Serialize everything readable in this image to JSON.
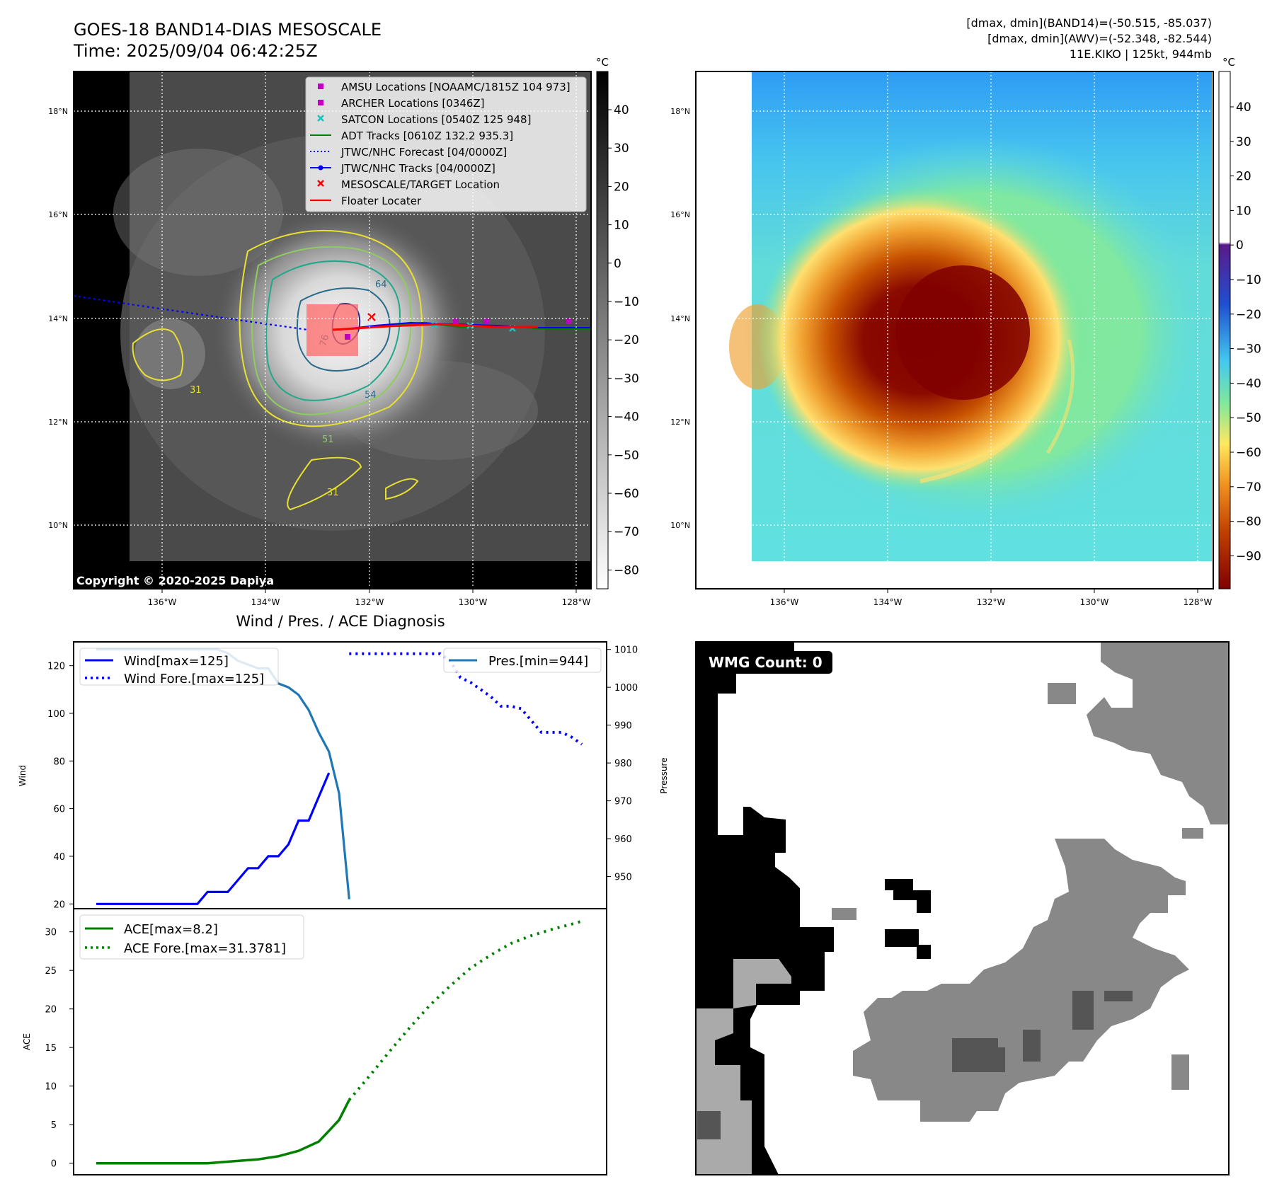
{
  "header": {
    "title_line1": "GOES-18 BAND14-DIAS MESOSCALE",
    "title_line2": "Time: 2025/09/04 06:42:25Z",
    "stats_line1": "[dmax, dmin](BAND14)=(-50.515, -85.037)",
    "stats_line2": "[dmax, dmin](AWV)=(-52.348, -82.544)",
    "stats_line3": "11E.KIKO | 125kt, 944mb"
  },
  "ir_map": {
    "colorbar_unit": "°C",
    "colorbar_ticks": [
      "40",
      "30",
      "20",
      "10",
      "0",
      "−10",
      "−20",
      "−30",
      "−40",
      "−50",
      "−60",
      "−70",
      "−80"
    ],
    "lat_labels": [
      "18°N",
      "16°N",
      "14°N",
      "12°N",
      "10°N"
    ],
    "lon_labels": [
      "136°W",
      "134°W",
      "132°W",
      "130°W",
      "128°W"
    ],
    "copyright": "Copyright © 2020-2025 Dapiya",
    "contour_labels": [
      "64",
      "76",
      "54",
      "31",
      "31",
      "51"
    ],
    "legend": [
      {
        "label": "AMSU Locations [NOAAMC/1815Z 104 973]",
        "color": "#c000c0",
        "marker": "square"
      },
      {
        "label": "ARCHER Locations [0346Z]",
        "color": "#c000c0",
        "marker": "square"
      },
      {
        "label": "SATCON Locations [0540Z 125 948]",
        "color": "#20c0c0",
        "marker": "x"
      },
      {
        "label": "ADT Tracks [0610Z 132.2 935.3]",
        "color": "#008000",
        "marker": "line"
      },
      {
        "label": "JTWC/NHC Forecast [04/0000Z]",
        "color": "#0000ff",
        "marker": "dotted"
      },
      {
        "label": "JTWC/NHC Tracks [04/0000Z]",
        "color": "#0000ff",
        "marker": "line-dot"
      },
      {
        "label": "MESOSCALE/TARGET Location",
        "color": "#ff0000",
        "marker": "x"
      },
      {
        "label": "Floater Locater",
        "color": "#ff0000",
        "marker": "line"
      }
    ]
  },
  "awv_map": {
    "colorbar_unit": "°C",
    "colorbar_ticks": [
      "40",
      "30",
      "20",
      "10",
      "0",
      "−10",
      "−20",
      "−30",
      "−40",
      "−50",
      "−60",
      "−70",
      "−80",
      "−90"
    ],
    "lat_labels": [
      "18°N",
      "16°N",
      "14°N",
      "12°N",
      "10°N"
    ],
    "lon_labels": [
      "136°W",
      "134°W",
      "132°W",
      "130°W",
      "128°W"
    ]
  },
  "wmg": {
    "label": "WMG Count: 0"
  },
  "chart_data": [
    {
      "type": "line",
      "title": "Wind / Pres. / ACE Diagnosis",
      "ylabel": "Wind",
      "y2label": "Pressure",
      "ylim": [
        18,
        130
      ],
      "y2lim": [
        941.5,
        1012
      ],
      "yticks": [
        20,
        40,
        60,
        80,
        100,
        120
      ],
      "y2ticks": [
        950,
        960,
        970,
        980,
        990,
        1000,
        1010
      ],
      "series": [
        {
          "name": "Wind[max=125]",
          "axis": "left",
          "style": "solid",
          "color": "#0000ff",
          "x": [
            0,
            6,
            12,
            18,
            24,
            30,
            36,
            42,
            48,
            54,
            60,
            66,
            72,
            78,
            84,
            90,
            96,
            102,
            108,
            114,
            120,
            126,
            132,
            138
          ],
          "values": [
            20,
            20,
            20,
            20,
            20,
            20,
            20,
            20,
            20,
            20,
            20,
            25,
            25,
            25,
            30,
            35,
            35,
            40,
            40,
            45,
            55,
            55,
            65,
            75
          ]
        },
        {
          "name": "Wind Fore.[max=125]",
          "axis": "left",
          "style": "dotted",
          "color": "#0000ff",
          "x": [
            150,
            156,
            162,
            168,
            174,
            180,
            186,
            192,
            198,
            204,
            210,
            216,
            222,
            228,
            234,
            240,
            246,
            252,
            258,
            264,
            270,
            276,
            282,
            288
          ],
          "values": [
            125,
            125,
            125,
            125,
            125,
            125,
            125,
            125,
            125,
            125,
            122,
            115,
            113,
            110,
            107,
            103,
            103,
            102,
            97,
            92,
            92,
            92,
            90,
            87
          ]
        },
        {
          "name": "Pres.[min=944]",
          "axis": "right",
          "style": "solid",
          "color": "#1f77b4",
          "x": [
            0,
            6,
            12,
            18,
            24,
            30,
            36,
            42,
            48,
            54,
            60,
            66,
            72,
            78,
            84,
            90,
            96,
            102,
            108,
            114,
            120,
            126,
            132,
            138,
            144,
            150
          ],
          "values": [
            1010,
            1010,
            1010,
            1010,
            1010,
            1010,
            1010,
            1010,
            1010,
            1010,
            1010,
            1010,
            1010,
            1009,
            1007,
            1006,
            1005,
            1005,
            1001,
            1000,
            998,
            994,
            988,
            983,
            972,
            944
          ]
        }
      ]
    },
    {
      "type": "line",
      "ylabel": "ACE",
      "ylim": [
        -1.5,
        33
      ],
      "yticks": [
        0,
        5,
        10,
        15,
        20,
        25,
        30
      ],
      "series": [
        {
          "name": "ACE[max=8.2]",
          "style": "solid",
          "color": "#008000",
          "x": [
            0,
            24,
            48,
            66,
            84,
            96,
            108,
            120,
            132,
            138,
            144,
            150
          ],
          "values": [
            0,
            0,
            0,
            0,
            0.3,
            0.5,
            0.9,
            1.6,
            2.8,
            4.2,
            5.6,
            8.2
          ]
        },
        {
          "name": "ACE Fore.[max=31.3781]",
          "style": "dotted",
          "color": "#008000",
          "x": [
            150,
            162,
            174,
            186,
            198,
            210,
            222,
            234,
            246,
            258,
            270,
            282,
            288
          ],
          "values": [
            8.2,
            11.3,
            14.5,
            17.6,
            20.5,
            23,
            25.3,
            27,
            28.5,
            29.5,
            30.3,
            31,
            31.3781
          ]
        }
      ]
    }
  ]
}
